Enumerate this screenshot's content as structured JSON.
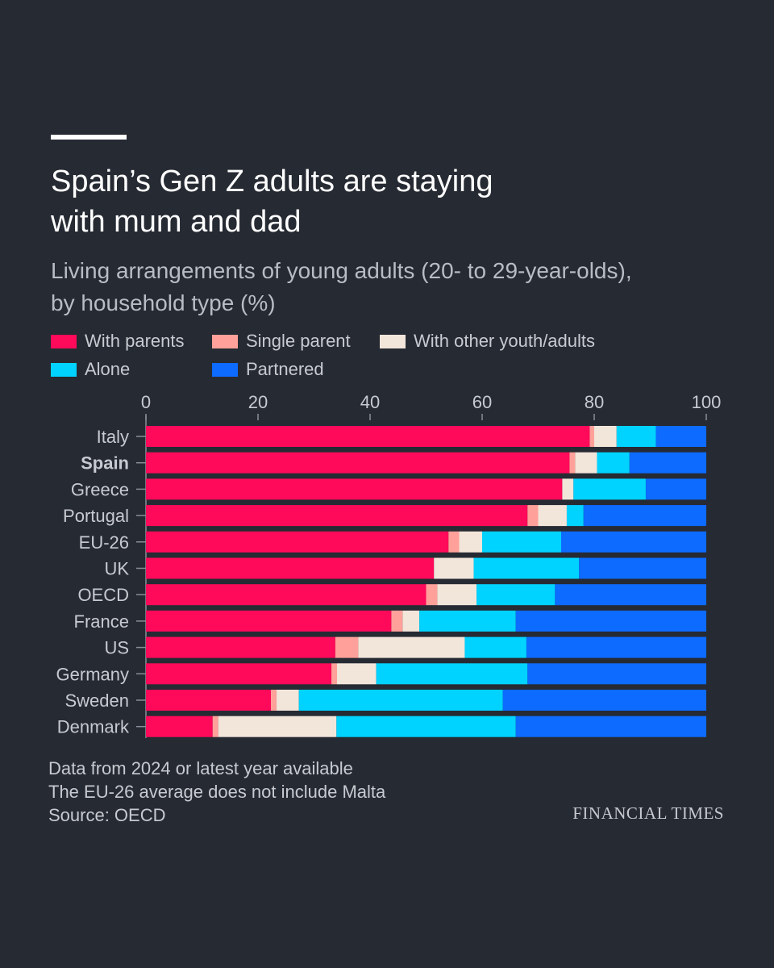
{
  "header": {
    "title_line1": "Spain’s Gen Z adults are staying",
    "title_line2": "with mum and dad",
    "subtitle_line1": "Living arrangements of young adults (20- to 29-year-olds),",
    "subtitle_line2": "by household type (%)"
  },
  "legend": [
    {
      "label": "With parents",
      "color": "#ff0a5a"
    },
    {
      "label": "Single parent",
      "color": "#ffa19a"
    },
    {
      "label": "With other youth/adults",
      "color": "#f2e5da"
    },
    {
      "label": "Alone",
      "color": "#00d3ff"
    },
    {
      "label": "Partnered",
      "color": "#0d6bff"
    }
  ],
  "chart_data": {
    "type": "bar",
    "orientation": "horizontal",
    "stacked": true,
    "xlim": [
      0,
      100
    ],
    "x_ticks": [
      "0",
      "20",
      "40",
      "60",
      "80",
      "100"
    ],
    "x_tick_values": [
      0,
      20,
      40,
      60,
      80,
      100
    ],
    "categories": [
      "Italy",
      "Spain",
      "Greece",
      "Portugal",
      "EU-26",
      "UK",
      "OECD",
      "France",
      "US",
      "Germany",
      "Sweden",
      "Denmark"
    ],
    "highlight_category": "Spain",
    "series": [
      {
        "name": "With parents",
        "color": "#ff0a5a",
        "values": [
          79.2,
          75.6,
          74.3,
          68.1,
          54.0,
          51.4,
          50.0,
          43.8,
          33.8,
          33.1,
          22.3,
          11.9
        ]
      },
      {
        "name": "Single parent",
        "color": "#ffa19a",
        "values": [
          0.8,
          1.0,
          0.0,
          1.9,
          1.9,
          0.0,
          2.0,
          2.0,
          4.1,
          1.0,
          1.0,
          1.0
        ]
      },
      {
        "name": "With other youth/adults",
        "color": "#f2e5da",
        "values": [
          4.0,
          3.9,
          2.0,
          5.1,
          4.1,
          7.1,
          7.0,
          3.0,
          19.0,
          7.0,
          4.0,
          21.1
        ]
      },
      {
        "name": "Alone",
        "color": "#00d3ff",
        "values": [
          7.0,
          5.8,
          12.9,
          3.0,
          14.1,
          18.8,
          14.0,
          17.2,
          11.0,
          27.0,
          36.4,
          32.0
        ]
      },
      {
        "name": "Partnered",
        "color": "#0d6bff",
        "values": [
          9.0,
          13.7,
          10.8,
          21.9,
          25.9,
          22.7,
          27.0,
          34.0,
          32.1,
          31.9,
          36.3,
          34.0
        ]
      }
    ]
  },
  "notes": [
    "Data from 2024 or latest year available",
    "The EU-26 average does not include Malta",
    "Source: OECD"
  ],
  "brand": "FINANCIAL TIMES"
}
